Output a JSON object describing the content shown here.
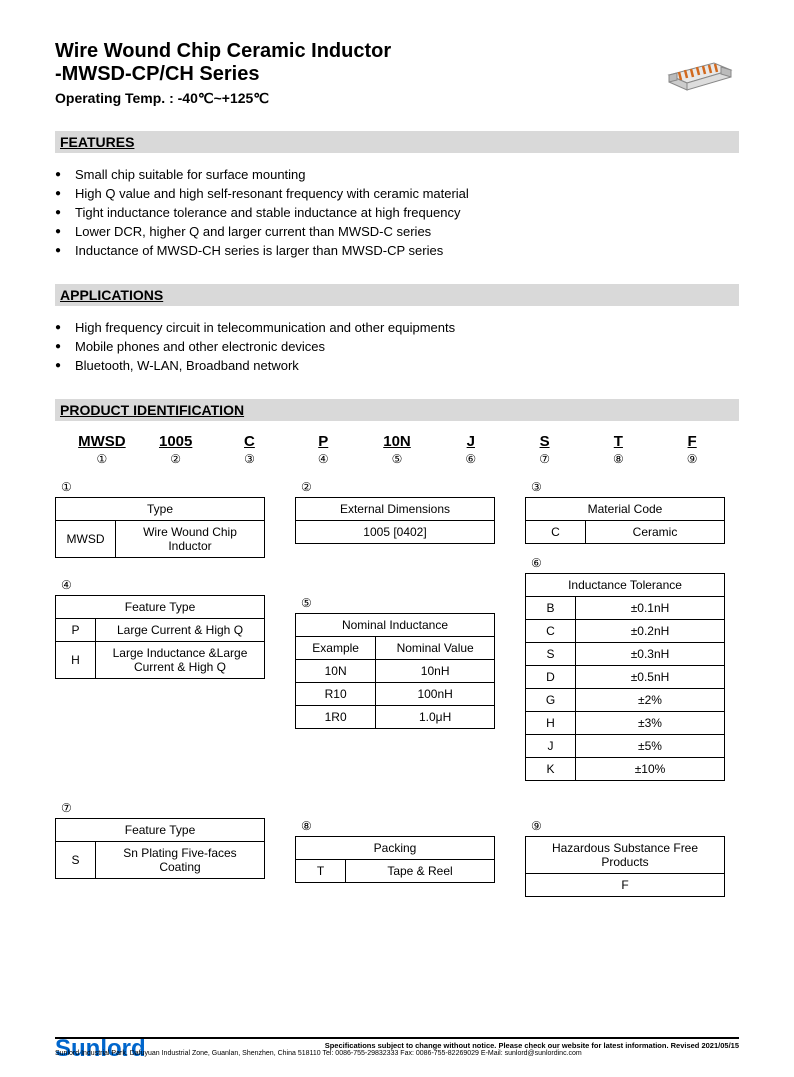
{
  "header": {
    "title1": "Wire Wound Chip Ceramic Inductor",
    "title2": "-MWSD-CP/CH Series",
    "optemp": "Operating Temp. : -40℃~+125℃"
  },
  "sections": {
    "features": "FEATURES",
    "applications": "APPLICATIONS",
    "prodid": "PRODUCT IDENTIFICATION"
  },
  "features": [
    "Small chip suitable for surface mounting",
    "High Q value and high self-resonant frequency with ceramic material",
    "Tight inductance tolerance and stable inductance at high frequency",
    "Lower DCR, higher Q and larger current than MWSD-C series",
    "Inductance of MWSD-CH series is larger than MWSD-CP series"
  ],
  "applications": [
    "High frequency circuit in telecommunication and other equipments",
    "Mobile phones and other electronic devices",
    "Bluetooth, W-LAN, Broadband network"
  ],
  "prodid_codes": [
    {
      "code": "MWSD",
      "num": "①"
    },
    {
      "code": "1005",
      "num": "②"
    },
    {
      "code": "C",
      "num": "③"
    },
    {
      "code": "P",
      "num": "④"
    },
    {
      "code": "10N",
      "num": "⑤"
    },
    {
      "code": "J",
      "num": "⑥"
    },
    {
      "code": "S",
      "num": "⑦"
    },
    {
      "code": "T",
      "num": "⑧"
    },
    {
      "code": "F",
      "num": "⑨"
    }
  ],
  "t1": {
    "num": "①",
    "header": "Type",
    "rows": [
      [
        "MWSD",
        "Wire Wound Chip Inductor"
      ]
    ]
  },
  "t2": {
    "num": "②",
    "header": "External Dimensions",
    "rows": [
      [
        "1005 [0402]"
      ]
    ]
  },
  "t3": {
    "num": "③",
    "header": "Material Code",
    "rows": [
      [
        "C",
        "Ceramic"
      ]
    ]
  },
  "t4": {
    "num": "④",
    "header": "Feature Type",
    "rows": [
      [
        "P",
        "Large Current & High Q"
      ],
      [
        "H",
        "Large Inductance &Large Current & High Q"
      ]
    ]
  },
  "t5": {
    "num": "⑤",
    "header": "Nominal Inductance",
    "sub": [
      "Example",
      "Nominal Value"
    ],
    "rows": [
      [
        "10N",
        "10nH"
      ],
      [
        "R10",
        "100nH"
      ],
      [
        "1R0",
        "1.0μH"
      ]
    ]
  },
  "t6": {
    "num": "⑥",
    "header": "Inductance Tolerance",
    "rows": [
      [
        "B",
        "±0.1nH"
      ],
      [
        "C",
        "±0.2nH"
      ],
      [
        "S",
        "±0.3nH"
      ],
      [
        "D",
        "±0.5nH"
      ],
      [
        "G",
        "±2%"
      ],
      [
        "H",
        "±3%"
      ],
      [
        "J",
        "±5%"
      ],
      [
        "K",
        "±10%"
      ]
    ]
  },
  "t7": {
    "num": "⑦",
    "header": "Feature Type",
    "rows": [
      [
        "S",
        "Sn Plating Five-faces Coating"
      ]
    ]
  },
  "t8": {
    "num": "⑧",
    "header": "Packing",
    "rows": [
      [
        "T",
        "Tape & Reel"
      ]
    ]
  },
  "t9": {
    "num": "⑨",
    "header": "Hazardous Substance Free Products",
    "rows": [
      [
        "F"
      ]
    ]
  },
  "footer": {
    "brand": "Sunlord",
    "line1": "Specifications subject to change without notice. Please check our website for latest information.      Revised 2021/05/15",
    "line2": "Sunlord Industrial Park, Dafuyuan Industrial Zone, Guanlan, Shenzhen, China 518110 Tel: 0086-755-29832333 Fax: 0086-755-82269029 E-Mail: sunlord@sunlordinc.com"
  },
  "colors": {
    "section_bg": "#d9d9d9",
    "brand": "#0066cc",
    "border": "#000000"
  }
}
